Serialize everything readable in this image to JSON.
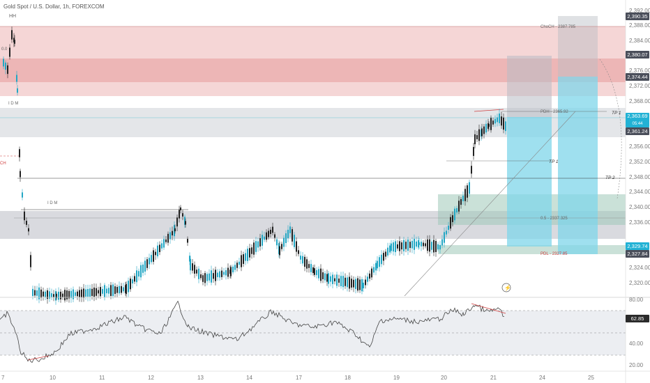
{
  "header": {
    "title": "Gold Spot / U.S. Dollar, 1h, FOREXCOM"
  },
  "price_axis": {
    "ticks": [
      "2,392.00",
      "2,388.00",
      "2,384.00",
      "2,376.00",
      "2,372.00",
      "2,368.00",
      "2,356.00",
      "2,352.00",
      "2,348.00",
      "2,344.00",
      "2,340.00",
      "2,336.00",
      "2,324.00",
      "2,320.00"
    ]
  },
  "rsi_axis": {
    "ticks": [
      "80.00",
      "40.00",
      "20.00"
    ]
  },
  "time_axis": {
    "labels": [
      "7",
      "10",
      "11",
      "12",
      "13",
      "14",
      "17",
      "18",
      "19",
      "20",
      "21",
      "24",
      "25"
    ]
  },
  "price_tags": {
    "t1": "2,390.35",
    "t2": "2,380.07",
    "t3": "2,374.44",
    "t4": "2,363.69",
    "t4_sub": "05:44",
    "t5": "2,361.24",
    "t6": "2,329.74",
    "t7": "2,327.84",
    "rsi": "62.85"
  },
  "tag_colors": {
    "dark": "#4a4e5a",
    "cyan": "#22b2d5",
    "rsi": "#2b2b2b"
  },
  "annotations": {
    "hh": "HH",
    "idm1": "I D M",
    "idm2": "I D M",
    "choch_left": "CH",
    "choch_top": "ChoCH - 2387.785",
    "pdh": "PDH - 2365.92",
    "fib": "0.5 - 2337.325",
    "pdl": "PDL - 2327.85",
    "tp1a": "TP 1",
    "tp1b": "TP 1",
    "tp2": "TP 2",
    "fib_left": "0.0",
    "lightning": "⚡"
  },
  "chart_data": {
    "type": "candlestick",
    "symbol": "Gold Spot / U.S. Dollar",
    "timeframe": "1h",
    "price_range": [
      2318,
      2393
    ],
    "rsi_range": [
      15,
      85
    ]
  }
}
